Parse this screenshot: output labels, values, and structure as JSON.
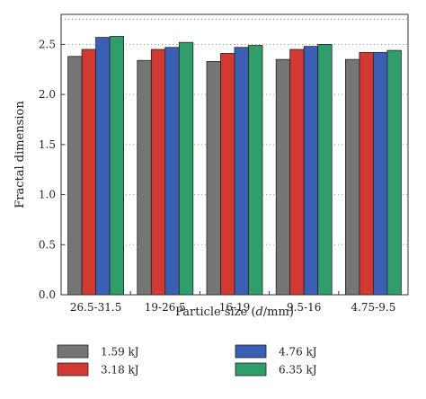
{
  "chart_data": {
    "type": "bar",
    "categories": [
      "26.5-31.5",
      "19-26.5",
      "16-19",
      "9.5-16",
      "4.75-9.5"
    ],
    "series": [
      {
        "name": "1.59 kJ",
        "color": "#757575",
        "values": [
          2.38,
          2.34,
          2.33,
          2.35,
          2.35
        ]
      },
      {
        "name": "3.18 kJ",
        "color": "#d03a32",
        "values": [
          2.45,
          2.45,
          2.41,
          2.45,
          2.42
        ]
      },
      {
        "name": "4.76 kJ",
        "color": "#3a5fb5",
        "values": [
          2.57,
          2.47,
          2.47,
          2.48,
          2.42
        ]
      },
      {
        "name": "6.35 kJ",
        "color": "#2f9e6a",
        "values": [
          2.58,
          2.52,
          2.49,
          2.5,
          2.44
        ]
      }
    ],
    "xlabel_prefix": "Particle size (",
    "xlabel_italic": "d",
    "xlabel_suffix": "/mm)",
    "ylabel": "Fractal dimension",
    "ylim": [
      0,
      2.8
    ],
    "yticks": [
      "0.0",
      "0.5",
      "1.0",
      "1.5",
      "2.0",
      "2.5"
    ],
    "grid": "horizontal-dotted",
    "legend_position": "bottom"
  }
}
